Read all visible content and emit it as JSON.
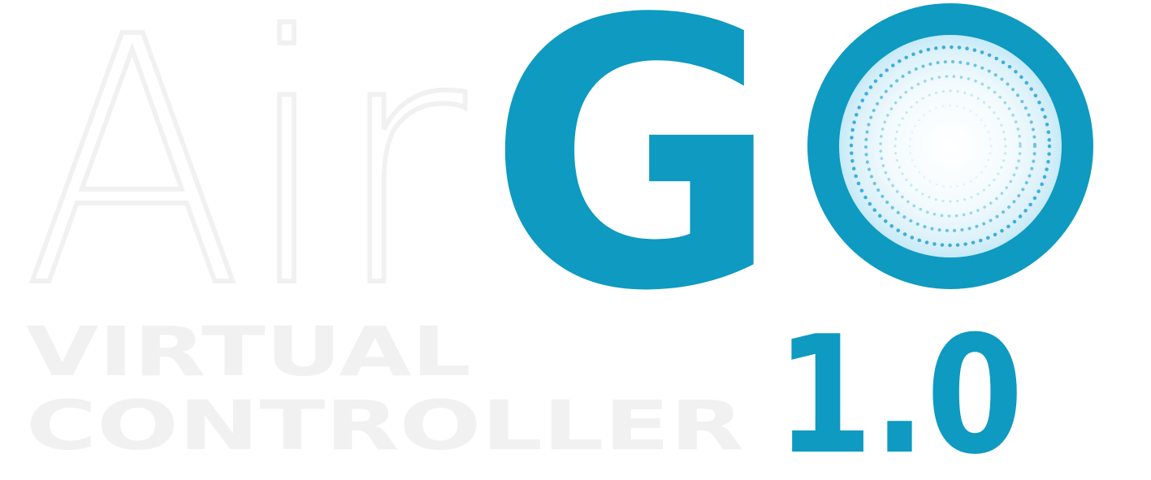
{
  "logo": {
    "word_light": "Air",
    "word_bold": "GO",
    "subtitle_line1": "VIRTUAL",
    "subtitle_line2": "CONTROLLER",
    "version": "1.0"
  },
  "colors": {
    "brand_blue": "#0E9AC1",
    "light_gray": "#F1F1F2",
    "dot_blue": "#52B4DA",
    "glow_center": "#FFFFFF",
    "glow_edge": "#C5EAF7"
  },
  "icons": {
    "o_letter": "dotted-ring-icon"
  }
}
